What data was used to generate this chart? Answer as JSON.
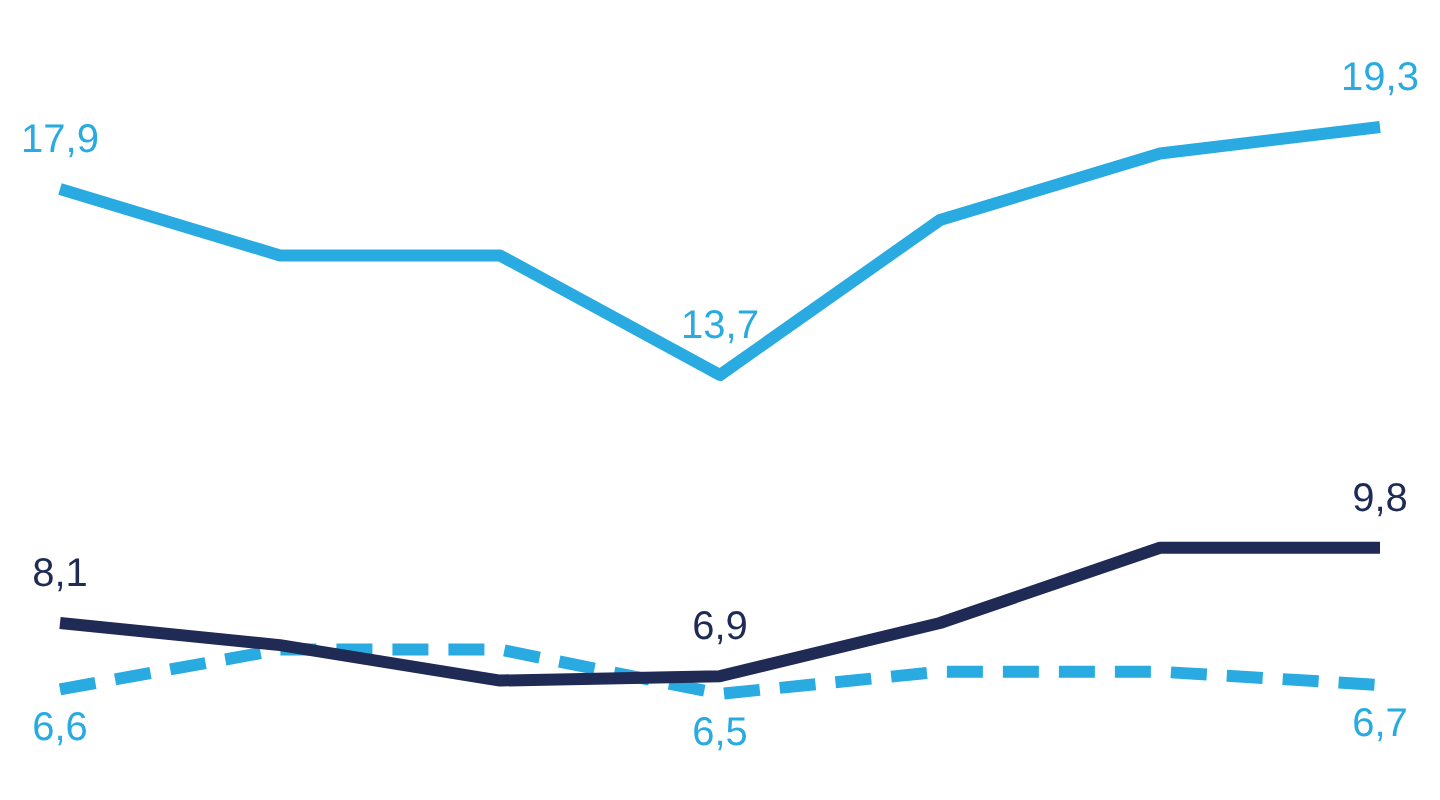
{
  "chart_data": {
    "type": "line",
    "categories": [
      null,
      null,
      null,
      null,
      null,
      null,
      null
    ],
    "series": [
      {
        "color": "#29abe2",
        "values": [
          17.9,
          16.4,
          16.4,
          13.7,
          17.2,
          18.7,
          19.3
        ],
        "value_labels": [
          "17,9",
          null,
          null,
          "13,7",
          null,
          null,
          "19,3"
        ]
      },
      {
        "color": "#1f2a55",
        "values": [
          8.1,
          7.6,
          6.8,
          6.9,
          8.1,
          9.8,
          9.8
        ],
        "value_labels": [
          "8,1",
          null,
          null,
          "6,9",
          null,
          null,
          "9,8"
        ]
      },
      {
        "color": "#29abe2",
        "line_style": "dashed",
        "values": [
          6.6,
          7.5,
          7.5,
          6.5,
          7.0,
          7.0,
          6.7
        ],
        "value_labels": [
          "6,6",
          null,
          null,
          "6,5",
          null,
          null,
          "6,7"
        ]
      }
    ],
    "legend": false,
    "marker": "none"
  }
}
